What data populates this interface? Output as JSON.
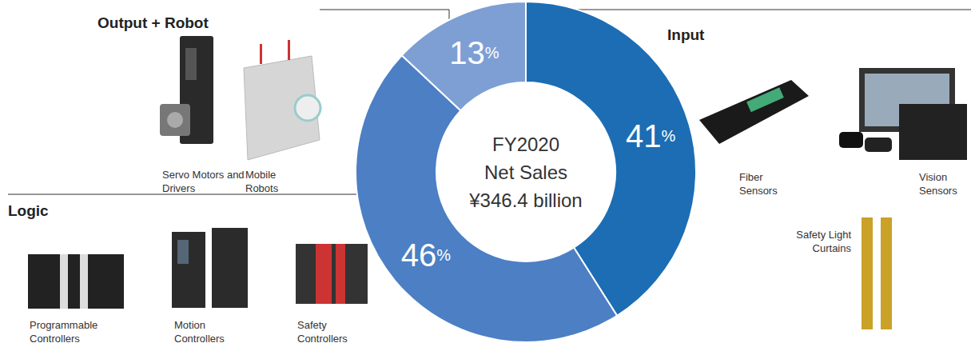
{
  "chart_data": {
    "type": "pie",
    "center_text": [
      "FY2020",
      "Net Sales",
      "¥346.4 billion"
    ],
    "categories": [
      "Input",
      "Logic",
      "Output + Robot"
    ],
    "values": [
      41,
      46,
      13
    ],
    "value_labels": [
      "41%",
      "46%",
      "13%"
    ],
    "colors": [
      "#1c6db4",
      "#4c7fc4",
      "#7d9fd4"
    ],
    "data_labels": true,
    "products": [
      [
        "Fiber Sensors",
        "Vision Sensors",
        "Safety Light Curtains"
      ],
      [
        "Programmable Controllers",
        "Motion Controllers",
        "Safety Controllers"
      ],
      [
        "Servo Motors and Drivers",
        "Mobile Robots"
      ]
    ]
  }
}
